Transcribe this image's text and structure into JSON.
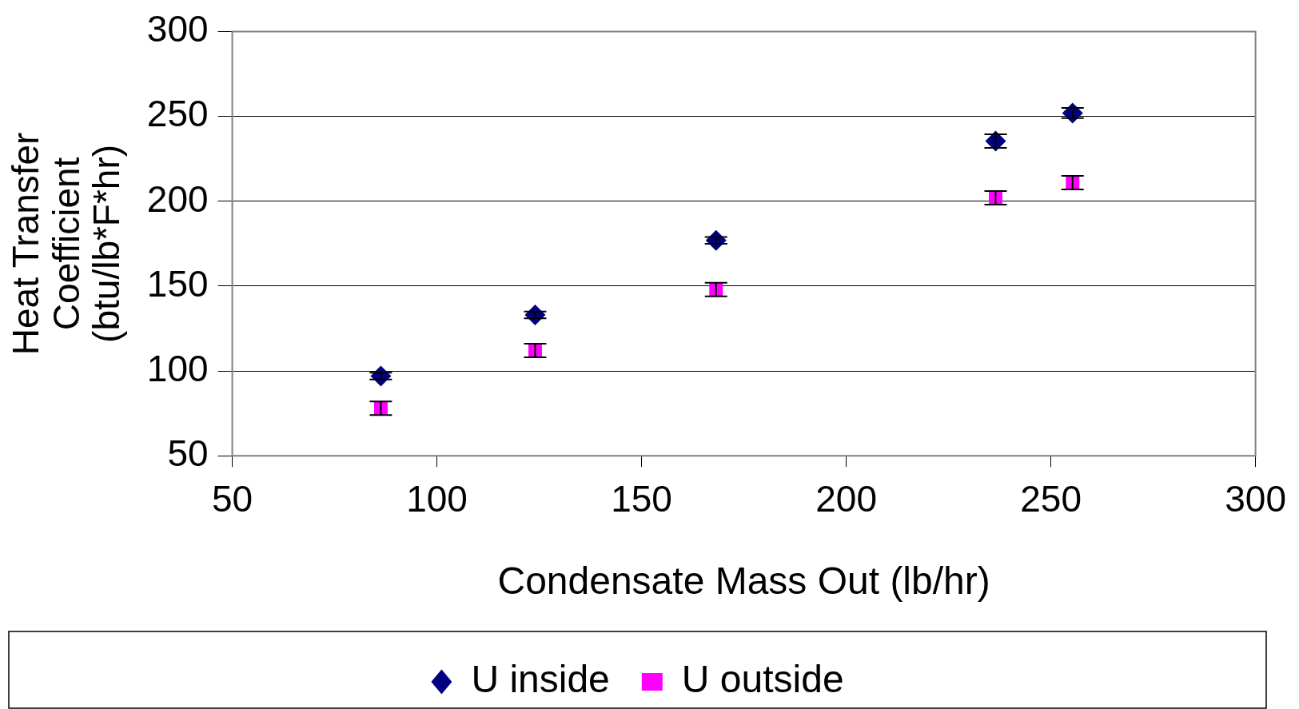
{
  "chart_data": {
    "type": "scatter",
    "xlabel": "Condensate Mass Out (lb/hr)",
    "ylabel": "Heat Transfer Coefficient (btu/lb*F*hr)",
    "xlim": [
      50,
      300
    ],
    "xticks": [
      50,
      100,
      150,
      200,
      250,
      300
    ],
    "ylim": [
      50,
      300
    ],
    "yticks": [
      50,
      100,
      150,
      200,
      250,
      300
    ],
    "grid": "y",
    "legend": "bottom",
    "series": [
      {
        "name": "U inside",
        "color": "#000080",
        "marker": "diamond",
        "x": [
          86.3,
          124,
          168.2,
          236.5,
          255.3
        ],
        "values": [
          97,
          133,
          177,
          235.5,
          252
        ],
        "errors": [
          2,
          2,
          2,
          4,
          3
        ]
      },
      {
        "name": "U outside",
        "color": "#ff00ff",
        "marker": "square",
        "x": [
          86.3,
          124,
          168.2,
          236.5,
          255.3
        ],
        "values": [
          78,
          112,
          148,
          202,
          211
        ],
        "errors": [
          4,
          4,
          4,
          4,
          4
        ]
      }
    ]
  }
}
